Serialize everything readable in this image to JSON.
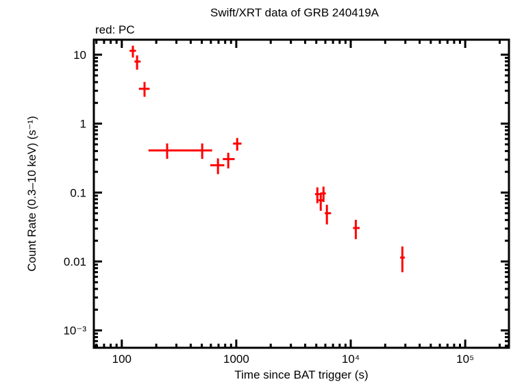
{
  "chart_data": {
    "type": "scatter",
    "title": "Swift/XRT data of GRB 240419A",
    "annotation": "red: PC",
    "xlabel": "Time since BAT trigger (s)",
    "ylabel": "Count Rate (0.3–10 keV) (s⁻¹)",
    "xscale": "log",
    "yscale": "log",
    "xlim": [
      57,
      241000
    ],
    "ylim": [
      0.00056,
      16.5
    ],
    "grid": false,
    "x_ticks": [
      {
        "value": 100,
        "label": "100"
      },
      {
        "value": 1000,
        "label": "1000"
      },
      {
        "value": 10000,
        "label": "10⁴"
      },
      {
        "value": 100000,
        "label": "10⁵"
      }
    ],
    "y_ticks": [
      {
        "value": 10,
        "label": "10"
      },
      {
        "value": 1,
        "label": "1"
      },
      {
        "value": 0.1,
        "label": "0.1"
      },
      {
        "value": 0.01,
        "label": "0.01"
      },
      {
        "value": 0.001,
        "label": "10⁻³"
      }
    ],
    "series": [
      {
        "color": "#ff0000",
        "points": [
          {
            "t": 125,
            "tlo": 117,
            "thi": 133,
            "rate": 11.4,
            "rlo": 9.1,
            "rhi": 13.5
          },
          {
            "t": 136,
            "tlo": 129,
            "thi": 146,
            "rate": 7.96,
            "rlo": 6.06,
            "rhi": 9.78
          },
          {
            "t": 158,
            "tlo": 141,
            "thi": 175,
            "rate": 3.2,
            "rlo": 2.45,
            "rhi": 4.02
          },
          {
            "t": 249,
            "tlo": 171,
            "thi": 356,
            "rate": 0.408,
            "rlo": 0.308,
            "rhi": 0.516
          },
          {
            "t": 504,
            "tlo": 356,
            "thi": 615,
            "rate": 0.408,
            "rlo": 0.308,
            "rhi": 0.516
          },
          {
            "t": 692,
            "tlo": 592,
            "thi": 787,
            "rate": 0.249,
            "rlo": 0.185,
            "rhi": 0.313
          },
          {
            "t": 851,
            "tlo": 763,
            "thi": 968,
            "rate": 0.306,
            "rlo": 0.224,
            "rhi": 0.378
          },
          {
            "t": 1019,
            "tlo": 937,
            "thi": 1112,
            "rate": 0.513,
            "rlo": 0.405,
            "rhi": 0.62
          },
          {
            "t": 5110,
            "tlo": 4880,
            "thi": 5360,
            "rate": 0.0949,
            "rlo": 0.07,
            "rhi": 0.119
          },
          {
            "t": 5470,
            "tlo": 5230,
            "thi": 5740,
            "rate": 0.0773,
            "rlo": 0.0544,
            "rhi": 0.0985
          },
          {
            "t": 5780,
            "tlo": 5400,
            "thi": 6060,
            "rate": 0.097,
            "rlo": 0.0731,
            "rhi": 0.122
          },
          {
            "t": 6190,
            "tlo": 5940,
            "thi": 6730,
            "rate": 0.0501,
            "rlo": 0.0345,
            "rhi": 0.0664
          },
          {
            "t": 11070,
            "tlo": 10470,
            "thi": 11970,
            "rate": 0.0306,
            "rlo": 0.0211,
            "rhi": 0.0402
          },
          {
            "t": 28250,
            "tlo": 26980,
            "thi": 29720,
            "rate": 0.0114,
            "rlo": 0.007,
            "rhi": 0.0165
          }
        ]
      }
    ]
  }
}
